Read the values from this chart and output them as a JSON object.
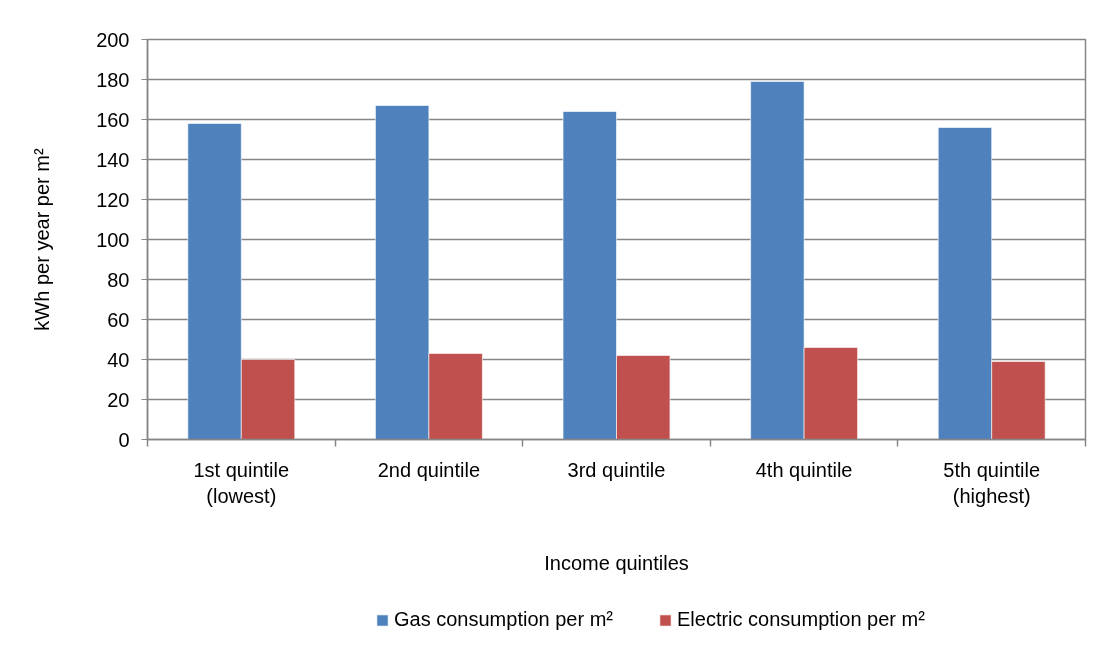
{
  "chart_data": {
    "type": "bar",
    "xlabel": "Income quintiles",
    "ylabel": "kWh per year per m²",
    "categories": [
      "1st quintile (lowest)",
      "2nd quintile",
      "3rd quintile",
      "4th quintile",
      "5th quintile (highest)"
    ],
    "series": [
      {
        "name": "Gas consumption per m²",
        "color": "#4f81bd",
        "values": [
          158,
          167,
          164,
          179,
          156
        ]
      },
      {
        "name": "Electric consumption per m²",
        "color": "#c0504d",
        "values": [
          40,
          43,
          42,
          46,
          39
        ]
      }
    ],
    "ylim": [
      0,
      200
    ],
    "yticks": [
      0,
      20,
      40,
      60,
      80,
      100,
      120,
      140,
      160,
      180,
      200
    ],
    "grid": "y",
    "legend": "bottom"
  }
}
